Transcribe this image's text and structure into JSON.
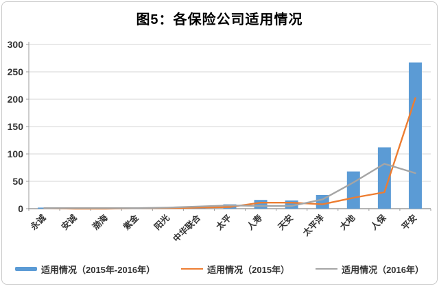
{
  "chart_data": {
    "type": "bar",
    "subtype": "bar-line-combo",
    "title": "图5：各保险公司适用情况",
    "categories": [
      "永诚",
      "安诚",
      "渤海",
      "紫金",
      "阳光",
      "中华联合",
      "太平",
      "人寿",
      "天安",
      "太平洋",
      "大地",
      "人保",
      "平安"
    ],
    "series": [
      {
        "name": "适用情况（2015年-2016年）",
        "kind": "bar",
        "color": "#5B9BD5",
        "values": [
          2,
          1,
          1,
          1,
          2,
          5,
          8,
          16,
          15,
          25,
          68,
          112,
          267
        ]
      },
      {
        "name": "适用情况（2015年）",
        "kind": "line",
        "color": "#ED7D31",
        "values": [
          1,
          0,
          0,
          1,
          1,
          2,
          3,
          11,
          11,
          8,
          20,
          30,
          202
        ]
      },
      {
        "name": "适用情况（2016年）",
        "kind": "line",
        "color": "#A5A5A5",
        "values": [
          1,
          1,
          1,
          1,
          2,
          4,
          6,
          5,
          5,
          17,
          48,
          82,
          65
        ]
      }
    ],
    "xlabel": "",
    "ylabel": "",
    "ylim": [
      0,
      300
    ],
    "ytick_step": 50,
    "yticks": [
      "0",
      "50",
      "100",
      "150",
      "200",
      "250",
      "300"
    ],
    "grid": true,
    "legend_position": "bottom",
    "gridline_color": "#D6D6D6",
    "axis_color": "#9B9B9B",
    "tick_label_color": "#333333"
  }
}
